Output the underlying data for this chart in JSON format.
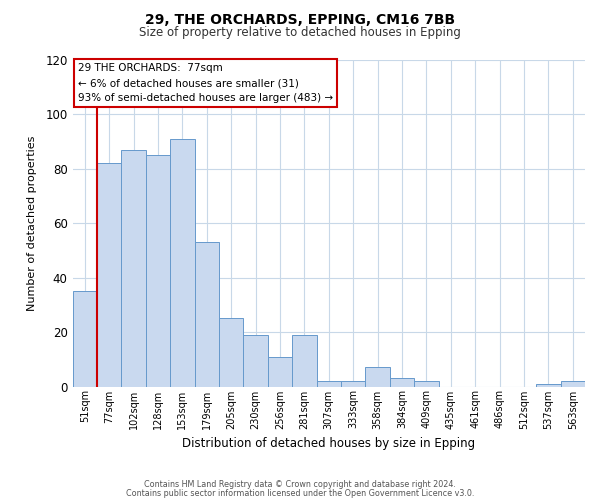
{
  "title": "29, THE ORCHARDS, EPPING, CM16 7BB",
  "subtitle": "Size of property relative to detached houses in Epping",
  "xlabel": "Distribution of detached houses by size in Epping",
  "ylabel": "Number of detached properties",
  "bar_labels": [
    "51sqm",
    "77sqm",
    "102sqm",
    "128sqm",
    "153sqm",
    "179sqm",
    "205sqm",
    "230sqm",
    "256sqm",
    "281sqm",
    "307sqm",
    "333sqm",
    "358sqm",
    "384sqm",
    "409sqm",
    "435sqm",
    "461sqm",
    "486sqm",
    "512sqm",
    "537sqm",
    "563sqm"
  ],
  "bar_values": [
    35,
    82,
    87,
    85,
    91,
    53,
    25,
    19,
    11,
    19,
    2,
    2,
    7,
    3,
    2,
    0,
    0,
    0,
    0,
    1,
    2
  ],
  "bar_color": "#c9d9ef",
  "bar_edge_color": "#6699cc",
  "highlight_bar_index": 1,
  "highlight_color": "#cc0000",
  "ylim": [
    0,
    120
  ],
  "yticks": [
    0,
    20,
    40,
    60,
    80,
    100,
    120
  ],
  "annotation_title": "29 THE ORCHARDS:  77sqm",
  "annotation_line1": "← 6% of detached houses are smaller (31)",
  "annotation_line2": "93% of semi-detached houses are larger (483) →",
  "footer_line1": "Contains HM Land Registry data © Crown copyright and database right 2024.",
  "footer_line2": "Contains public sector information licensed under the Open Government Licence v3.0.",
  "background_color": "#ffffff",
  "grid_color": "#c8d8e8"
}
